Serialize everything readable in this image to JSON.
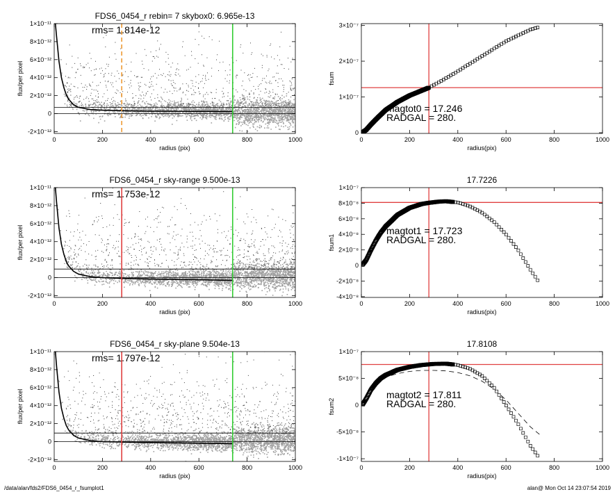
{
  "footer": {
    "path": "/data/alan/fds2/FDS6_0454_r_fsumplot1",
    "stamp": "alan@  Mon Oct 14 23:07:54 2019"
  },
  "colors": {
    "gray_points": "#a0a0a0",
    "dark_points": "#3a3a3a",
    "green_line": "#33cc33",
    "red_line": "#e04040",
    "orange_dash": "#ee9933"
  },
  "chart_data": [
    {
      "type": "scatter",
      "title": "FDS6_0454_r rebin= 7    skybox0:  6.965e-13",
      "annotation": "rms= 1.814e-12",
      "xlabel": "radius (pix)",
      "ylabel": "flux/per pixel",
      "xlim": [
        0,
        1000
      ],
      "ylim": [
        -2.2e-12,
        1e-11
      ],
      "xticks": [
        0,
        200,
        400,
        600,
        800,
        1000
      ],
      "xtick_labels": [
        "0",
        "200",
        "400",
        "600",
        "800",
        "1000"
      ],
      "ytick_labels": [
        "-2×10⁻¹²",
        "0",
        "2×10⁻¹²",
        "4×10⁻¹²",
        "6×10⁻¹²",
        "8×10⁻¹²",
        "1×10⁻¹¹"
      ],
      "yticks": [
        -2e-12,
        0,
        2e-12,
        4e-12,
        6e-12,
        8e-12,
        1e-11
      ],
      "hlines": [
        0,
        6.965e-13
      ],
      "vlines": [
        {
          "x": 740,
          "style": "green"
        },
        {
          "x": 280,
          "style": "orange_dash"
        }
      ],
      "profile_r": [
        5,
        10,
        20,
        30,
        40,
        50,
        60,
        80,
        100,
        150,
        200,
        300,
        400,
        500,
        600,
        740
      ],
      "profile_f": [
        1e-11,
        8.5e-12,
        5.8e-12,
        4e-12,
        2.9e-12,
        2.1e-12,
        1.6e-12,
        1e-12,
        7e-13,
        4.5e-13,
        3.8e-13,
        3.2e-13,
        2.8e-13,
        2.6e-13,
        2.5e-13,
        2.4e-13
      ]
    },
    {
      "type": "line",
      "title": "",
      "xlabel": "radius(pix)",
      "ylabel": "fsum",
      "xlim": [
        0,
        1000
      ],
      "ylim": [
        -2e-09,
        3.05e-07
      ],
      "xticks": [
        0,
        200,
        400,
        600,
        800,
        1000
      ],
      "xtick_labels": [
        "0",
        "200",
        "400",
        "600",
        "800",
        "1000"
      ],
      "yticks": [
        0,
        1e-07,
        2e-07,
        3e-07
      ],
      "ytick_labels": [
        "0",
        "1×10⁻⁷",
        "2×10⁻⁷",
        "3×10⁻⁷"
      ],
      "annotations": [
        "magtot0 =  17.246",
        "RADGAL =    280."
      ],
      "crosshair": {
        "x": 280,
        "y": 1.26e-07
      },
      "x": [
        5,
        20,
        40,
        60,
        80,
        100,
        150,
        200,
        280,
        350,
        400,
        500,
        600,
        700,
        740
      ],
      "y": [
        1e-09,
        8e-09,
        2.3e-08,
        3.7e-08,
        5e-08,
        6.3e-08,
        8.6e-08,
        1.04e-07,
        1.26e-07,
        1.52e-07,
        1.72e-07,
        2.14e-07,
        2.56e-07,
        2.88e-07,
        2.96e-07
      ],
      "dense_until": 280
    },
    {
      "type": "scatter",
      "title": "FDS6_0454_r sky-range  9.500e-13",
      "annotation": "rms= 1.753e-12",
      "xlabel": "radius (pix)",
      "ylabel": "flux/per pixel",
      "xlim": [
        0,
        1000
      ],
      "ylim": [
        -2.2e-12,
        1e-11
      ],
      "xticks": [
        0,
        200,
        400,
        600,
        800,
        1000
      ],
      "xtick_labels": [
        "0",
        "200",
        "400",
        "600",
        "800",
        "1000"
      ],
      "ytick_labels": [
        "-2×10⁻¹²",
        "0",
        "2×10⁻¹²",
        "4×10⁻¹²",
        "6×10⁻¹²",
        "8×10⁻¹²",
        "1×10⁻¹¹"
      ],
      "yticks": [
        -2e-12,
        0,
        2e-12,
        4e-12,
        6e-12,
        8e-12,
        1e-11
      ],
      "hlines": [
        0,
        9.5e-13
      ],
      "vlines": [
        {
          "x": 740,
          "style": "green"
        },
        {
          "x": 280,
          "style": "red"
        }
      ],
      "profile_r": [
        5,
        10,
        20,
        30,
        40,
        50,
        60,
        80,
        100,
        150,
        200,
        300,
        400,
        500,
        600,
        740
      ],
      "profile_f": [
        1e-11,
        8.3e-12,
        5.5e-12,
        3.7e-12,
        2.6e-12,
        1.8e-12,
        1.3e-12,
        7e-13,
        4e-13,
        1e-13,
        0.0,
        -1e-13,
        -1.6e-13,
        -2e-13,
        -2.4e-13,
        -3e-13
      ]
    },
    {
      "type": "line",
      "title": "17.7226",
      "xlabel": "radius(pix)",
      "ylabel": "fsum1",
      "xlim": [
        0,
        1000
      ],
      "ylim": [
        -4.1e-08,
        1e-07
      ],
      "xticks": [
        0,
        200,
        400,
        600,
        800,
        1000
      ],
      "xtick_labels": [
        "0",
        "200",
        "400",
        "600",
        "800",
        "1000"
      ],
      "yticks": [
        -4e-08,
        -2e-08,
        0,
        2e-08,
        4e-08,
        6e-08,
        8e-08,
        1e-07
      ],
      "ytick_labels": [
        "-4×10⁻⁸",
        "-2×10⁻⁸",
        "0",
        "2×10⁻⁸",
        "4×10⁻⁸",
        "6×10⁻⁸",
        "8×10⁻⁸",
        "1×10⁻⁷"
      ],
      "annotations": [
        "magtot1 =  17.723",
        "RADGAL =    280."
      ],
      "crosshair": {
        "x": 280,
        "y": 8.1e-08
      },
      "x": [
        5,
        20,
        40,
        60,
        80,
        100,
        150,
        200,
        250,
        280,
        320,
        350,
        400,
        450,
        500,
        550,
        600,
        650,
        700,
        740
      ],
      "y": [
        1e-09,
        7e-09,
        2e-08,
        3.2e-08,
        4.2e-08,
        5e-08,
        6.5e-08,
        7.4e-08,
        7.9e-08,
        8.05e-08,
        8.2e-08,
        8.25e-08,
        8.1e-08,
        7.6e-08,
        6.8e-08,
        5.6e-08,
        4e-08,
        2e-08,
        -5e-09,
        -2.3e-08
      ],
      "dense_until": 380
    },
    {
      "type": "scatter",
      "title": "FDS6_0454_r sky-plane  9.504e-13",
      "annotation": "rms= 1.797e-12",
      "xlabel": "radius (pix)",
      "ylabel": "flux/per pixel",
      "xlim": [
        0,
        1000
      ],
      "ylim": [
        -2.2e-12,
        1e-11
      ],
      "xticks": [
        0,
        200,
        400,
        600,
        800,
        1000
      ],
      "xtick_labels": [
        "0",
        "200",
        "400",
        "600",
        "800",
        "1000"
      ],
      "ytick_labels": [
        "-2×10⁻¹²",
        "0",
        "2×10⁻¹²",
        "4×10⁻¹²",
        "6×10⁻¹²",
        "8×10⁻¹²",
        "1×10⁻¹¹"
      ],
      "yticks": [
        -2e-12,
        0,
        2e-12,
        4e-12,
        6e-12,
        8e-12,
        1e-11
      ],
      "hlines": [
        0,
        9.504e-13
      ],
      "vlines": [
        {
          "x": 740,
          "style": "green"
        },
        {
          "x": 280,
          "style": "red"
        }
      ],
      "profile_r": [
        5,
        10,
        20,
        30,
        40,
        50,
        60,
        80,
        100,
        150,
        200,
        300,
        400,
        500,
        600,
        740
      ],
      "profile_f": [
        1e-11,
        8.3e-12,
        5.5e-12,
        3.7e-12,
        2.6e-12,
        1.8e-12,
        1.3e-12,
        7e-13,
        4e-13,
        1e-13,
        0.0,
        -6e-14,
        -1e-13,
        -1.4e-13,
        -1.8e-13,
        -2.2e-13
      ]
    },
    {
      "type": "line",
      "title": "17.8108",
      "xlabel": "radius(pix)",
      "ylabel": "fsum2",
      "xlim": [
        0,
        1000
      ],
      "ylim": [
        -1.05e-07,
        1e-07
      ],
      "xticks": [
        0,
        200,
        400,
        600,
        800,
        1000
      ],
      "xtick_labels": [
        "0",
        "200",
        "400",
        "600",
        "800",
        "1000"
      ],
      "yticks": [
        -1e-07,
        -5e-08,
        0,
        5e-08,
        1e-07
      ],
      "ytick_labels": [
        "-1×10⁻⁷",
        "-5×10⁻⁸",
        "0",
        "5×10⁻⁸",
        "1×10⁻⁷"
      ],
      "annotations": [
        "magtot2 =  17.811",
        "RADGAL =    280."
      ],
      "crosshair": {
        "x": 280,
        "y": 7.6e-08
      },
      "x": [
        5,
        20,
        40,
        60,
        80,
        100,
        150,
        200,
        250,
        300,
        350,
        400,
        450,
        500,
        550,
        600,
        650,
        700,
        740
      ],
      "y": [
        1e-09,
        1.2e-08,
        2.9e-08,
        4.1e-08,
        5e-08,
        5.6e-08,
        6.6e-08,
        7.15e-08,
        7.5e-08,
        7.7e-08,
        7.75e-08,
        7.5e-08,
        6.8e-08,
        5.5e-08,
        3.3e-08,
        0.0,
        -3.5e-08,
        -7.5e-08,
        -1e-07
      ],
      "dense_until": 380,
      "dashed_x": [
        60,
        100,
        150,
        200,
        250,
        300,
        350,
        400,
        450,
        500,
        550,
        600,
        650,
        700,
        740
      ],
      "dashed_y": [
        4.4e-08,
        5.2e-08,
        5.9e-08,
        6.3e-08,
        6.5e-08,
        6.5e-08,
        6.4e-08,
        6.1e-08,
        5.5e-08,
        4.5e-08,
        3e-08,
        1e-08,
        -1.5e-08,
        -4e-08,
        -5.5e-08
      ]
    }
  ]
}
